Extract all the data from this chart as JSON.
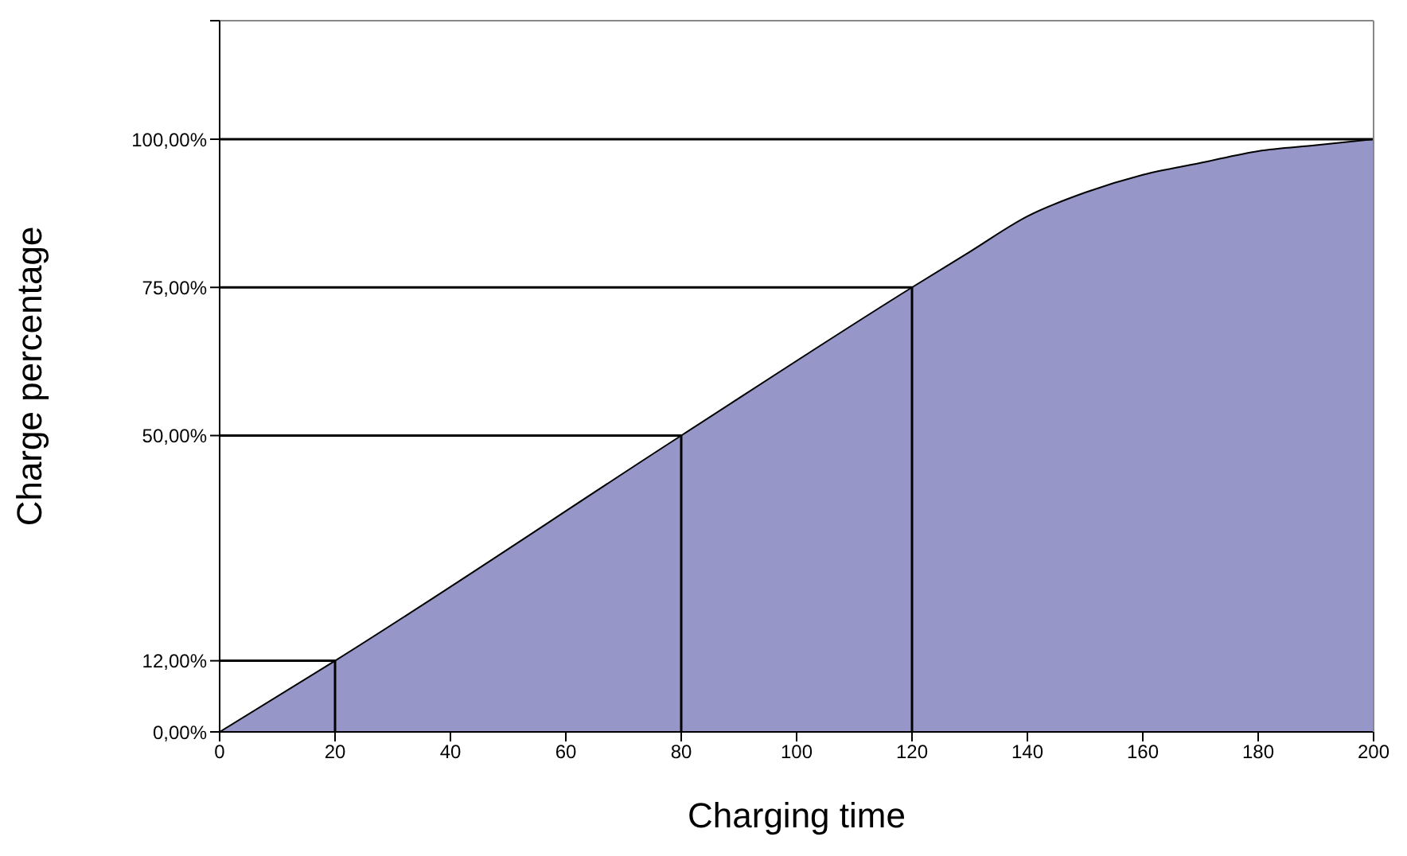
{
  "chart_data": {
    "type": "area",
    "xlabel": "Charging time",
    "ylabel": "Charge percentage",
    "xlim": [
      0,
      200
    ],
    "xticks": [
      0,
      20,
      40,
      60,
      80,
      100,
      120,
      140,
      160,
      180,
      200
    ],
    "ylim": [
      0,
      120
    ],
    "yticks": [
      {
        "value": 0,
        "label": "0,00%"
      },
      {
        "value": 12,
        "label": "12,00%"
      },
      {
        "value": 50,
        "label": "50,00%"
      },
      {
        "value": 75,
        "label": "75,00%"
      },
      {
        "value": 100,
        "label": "100,00%"
      },
      {
        "value": 120,
        "label": null
      }
    ],
    "legend": false,
    "series": [
      {
        "color": "#9696c8",
        "x": [
          0,
          20,
          80,
          120,
          130,
          140,
          150,
          160,
          170,
          180,
          190,
          200
        ],
        "values": [
          0,
          12,
          50,
          75,
          81,
          87,
          91,
          94,
          96,
          98,
          99,
          100
        ]
      },
      {
        "type": "line",
        "color": "#000000",
        "x": [
          0,
          20,
          20
        ],
        "values": [
          12,
          12,
          0
        ]
      },
      {
        "type": "line",
        "color": "#000000",
        "x": [
          0,
          80,
          80
        ],
        "values": [
          50,
          50,
          0
        ]
      },
      {
        "type": "line",
        "color": "#000000",
        "x": [
          0,
          120,
          120
        ],
        "values": [
          75,
          75,
          0
        ]
      },
      {
        "type": "line",
        "color": "#000000",
        "x": [
          0,
          200
        ],
        "values": [
          100,
          100
        ]
      }
    ]
  }
}
